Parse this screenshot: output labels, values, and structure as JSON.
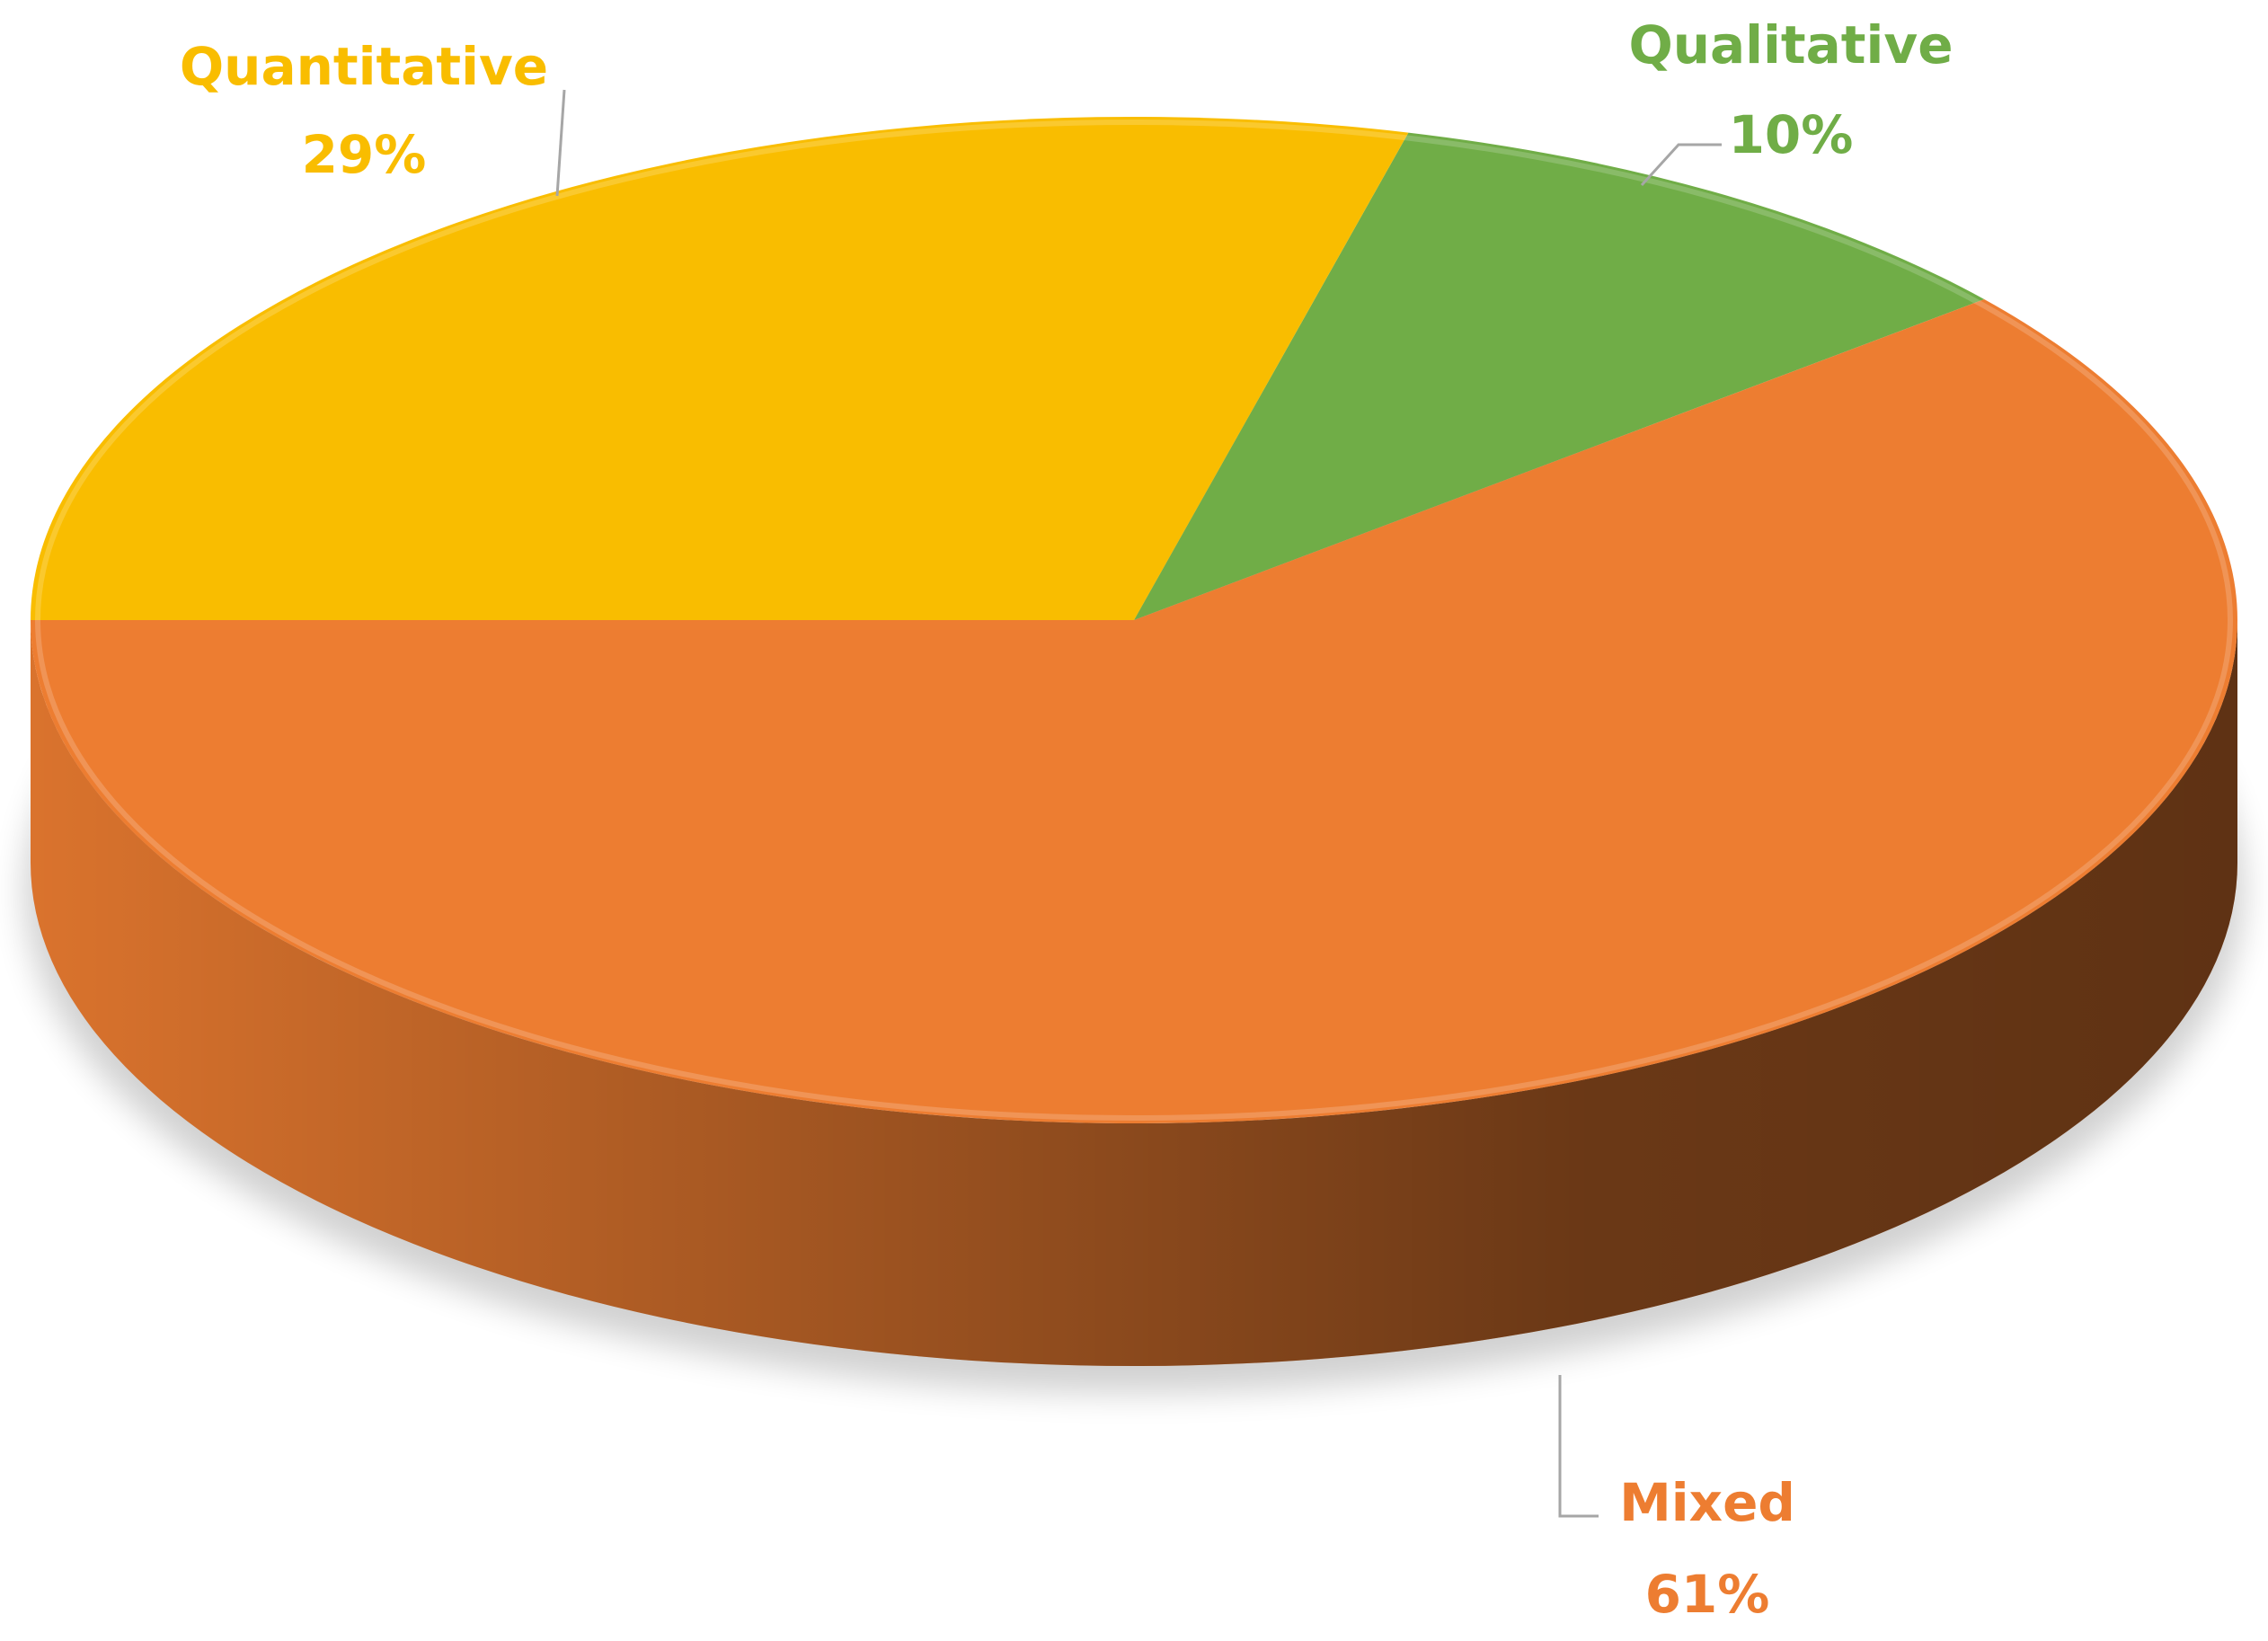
{
  "chart_data": {
    "type": "pie",
    "categories": [
      "Qualitative",
      "Mixed",
      "Quantitative"
    ],
    "values": [
      10,
      61,
      29
    ],
    "value_labels": [
      "10%",
      "61%",
      "29%"
    ],
    "colors": [
      "#70ad47",
      "#ed7d31",
      "#f9bd00"
    ]
  }
}
